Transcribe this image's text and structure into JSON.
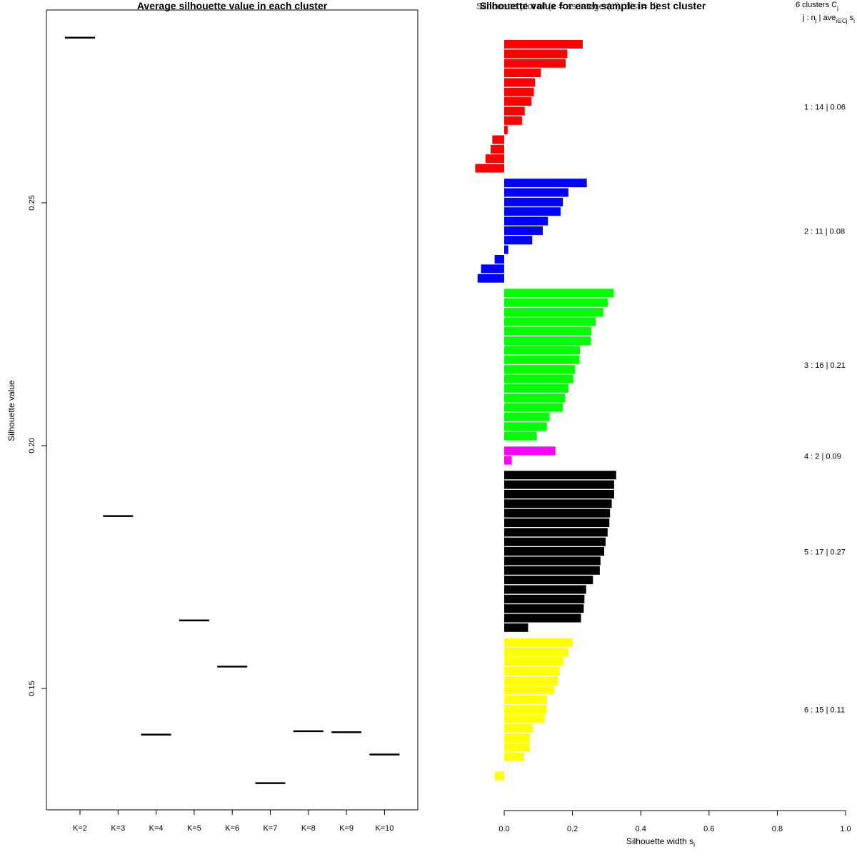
{
  "chart_data": [
    {
      "type": "line",
      "title": "Average silhouette value in each cluster",
      "ylabel": "Silhouette value",
      "xlabel": "",
      "categories": [
        "K=2",
        "K=3",
        "K=4",
        "K=5",
        "K=6",
        "K=7",
        "K=8",
        "K=9",
        "K=10"
      ],
      "values": [
        0.284,
        0.1855,
        0.1405,
        0.164,
        0.1545,
        0.1305,
        0.1412,
        0.141,
        0.1364
      ],
      "yticks": [
        "0.15",
        "0.20",
        "0.25"
      ],
      "ylim": [
        0.125,
        0.29
      ]
    },
    {
      "type": "bar",
      "title": "Silhouette value for each sample in best cluster",
      "title_overlay": "Silhouette plot of (x = as.integer(cl), dist = d)",
      "xlabel": "Silhouette width s",
      "xlabel_sub": "i",
      "xticks": [
        "0.0",
        "0.2",
        "0.4",
        "0.6",
        "0.8",
        "1.0"
      ],
      "xlim": [
        0,
        1
      ],
      "legend_line1": "6 clusters C",
      "legend_line1_sub": "j",
      "legend_line2": "j : n",
      "legend_line2_rest": " | ave",
      "legend_line2_sub": "i∈Cj",
      "legend_line2_tail": " s",
      "legend_line2_tail_sub": "i",
      "clusters": [
        {
          "label": "1 :  14  |  0.06",
          "color": "#ff0000",
          "values": [
            0.23,
            0.185,
            0.18,
            0.107,
            0.09,
            0.087,
            0.08,
            0.06,
            0.052,
            0.01,
            -0.035,
            -0.04,
            -0.055,
            -0.085
          ]
        },
        {
          "label": "2 :  11  |  0.08",
          "color": "#0000ff",
          "values": [
            0.242,
            0.188,
            0.172,
            0.165,
            0.128,
            0.113,
            0.082,
            0.012,
            -0.028,
            -0.068,
            -0.078
          ]
        },
        {
          "label": "3 :  16  |  0.21",
          "color": "#00ff00",
          "values": [
            0.32,
            0.303,
            0.29,
            0.268,
            0.255,
            0.253,
            0.222,
            0.22,
            0.207,
            0.202,
            0.188,
            0.178,
            0.172,
            0.132,
            0.125,
            0.095
          ]
        },
        {
          "label": "4 :  2  |  0.09",
          "color": "#ff00ff",
          "values": [
            0.15,
            0.022
          ]
        },
        {
          "label": "5 :  17  |  0.27",
          "color": "#000000",
          "values": [
            0.328,
            0.322,
            0.322,
            0.315,
            0.31,
            0.308,
            0.303,
            0.297,
            0.293,
            0.282,
            0.28,
            0.26,
            0.24,
            0.235,
            0.233,
            0.225,
            0.07
          ]
        },
        {
          "label": "6 :  15  |  0.11",
          "color": "#ffff00",
          "values": [
            0.2,
            0.188,
            0.173,
            0.162,
            0.157,
            0.147,
            0.125,
            0.123,
            0.118,
            0.082,
            0.075,
            0.075,
            0.057,
            null,
            -0.028
          ]
        }
      ]
    }
  ]
}
